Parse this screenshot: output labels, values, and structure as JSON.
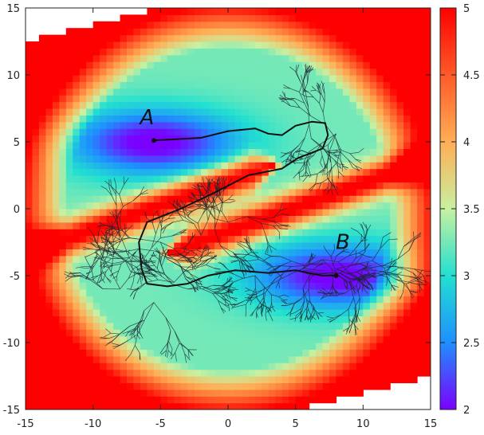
{
  "chart_data": {
    "type": "heatmap",
    "title": "",
    "xlabel": "",
    "ylabel": "",
    "xlim": [
      -15,
      15
    ],
    "ylim": [
      -15,
      15
    ],
    "xticks": [
      -15,
      -10,
      -5,
      0,
      5,
      10,
      15
    ],
    "yticks": [
      -15,
      -10,
      -5,
      0,
      5,
      10,
      15
    ],
    "grid": false,
    "colorbar": {
      "range": [
        2,
        5
      ],
      "ticks": [
        2,
        2.5,
        3,
        3.5,
        4,
        4.5,
        5
      ],
      "colors": [
        "#7a00ff",
        "#1e8fff",
        "#22e0d0",
        "#c8f0a0",
        "#ffae55",
        "#ff5a28",
        "#ff0000"
      ]
    },
    "annotations": [
      {
        "text": "A",
        "x": -6,
        "y": 6.3
      },
      {
        "text": "B",
        "x": 8.5,
        "y": -3
      },
      {
        "text": "",
        "x": -5.5,
        "y": 5.1
      },
      {
        "text": "",
        "x": 8,
        "y": -5
      }
    ],
    "path": {
      "from": "A",
      "to": "B",
      "points": [
        [
          -5.5,
          5.1
        ],
        [
          -2,
          5.3
        ],
        [
          0,
          5.8
        ],
        [
          2,
          6
        ],
        [
          3,
          5.6
        ],
        [
          4,
          5.5
        ],
        [
          5,
          6.2
        ],
        [
          6.2,
          6.5
        ],
        [
          7.2,
          6.4
        ],
        [
          7.4,
          5.5
        ],
        [
          7,
          4.5
        ],
        [
          5.2,
          3.8
        ],
        [
          4,
          3
        ],
        [
          1.5,
          2.5
        ],
        [
          -1,
          1.2
        ],
        [
          -3.5,
          0
        ],
        [
          -6,
          -1
        ],
        [
          -6.6,
          -2.5
        ],
        [
          -6.4,
          -4.5
        ],
        [
          -6,
          -5.6
        ],
        [
          -4.5,
          -5.8
        ],
        [
          -3,
          -5.6
        ],
        [
          -1.5,
          -5
        ],
        [
          0.5,
          -4.6
        ],
        [
          3,
          -4.8
        ],
        [
          5,
          -4.6
        ],
        [
          7,
          -5
        ],
        [
          8,
          -5
        ]
      ]
    }
  }
}
